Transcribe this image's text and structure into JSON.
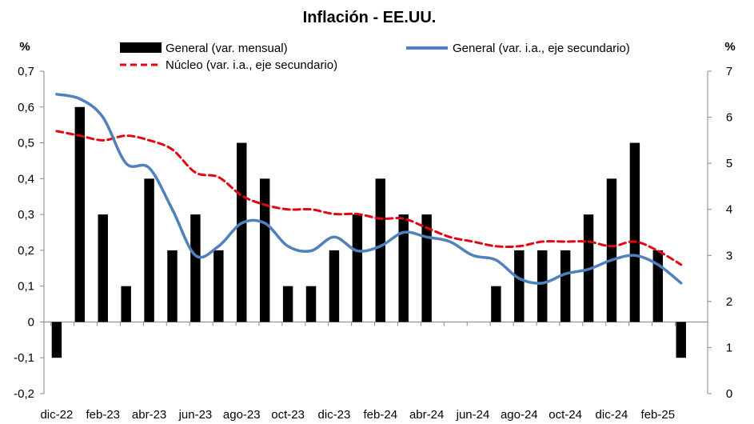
{
  "chart_data": {
    "type": "bar",
    "title": "Inflación - EE.UU.",
    "ylabel_left": "%",
    "ylabel_right": "%",
    "ylim": [
      -0.2,
      0.7
    ],
    "y2lim": [
      0,
      7
    ],
    "yticks": [
      "-0,2",
      "-0,1",
      "0",
      "0,1",
      "0,2",
      "0,3",
      "0,4",
      "0,5",
      "0,6",
      "0,7"
    ],
    "y2ticks": [
      "0",
      "1",
      "2",
      "3",
      "4",
      "5",
      "6",
      "7"
    ],
    "categories": [
      "dic-22",
      "ene-23",
      "feb-23",
      "mar-23",
      "abr-23",
      "may-23",
      "jun-23",
      "jul-23",
      "ago-23",
      "sep-23",
      "oct-23",
      "nov-23",
      "dic-23",
      "ene-24",
      "feb-24",
      "mar-24",
      "abr-24",
      "may-24",
      "jun-24",
      "jul-24",
      "ago-24",
      "sep-24",
      "oct-24",
      "nov-24",
      "dic-24",
      "ene-25",
      "feb-25",
      "mar-25"
    ],
    "tick_labels": [
      "dic-22",
      "feb-23",
      "abr-23",
      "jun-23",
      "ago-23",
      "oct-23",
      "dic-23",
      "feb-24",
      "abr-24",
      "jun-24",
      "ago-24",
      "oct-24",
      "dic-24",
      "feb-25"
    ],
    "series": [
      {
        "name": "General (var. mensual)",
        "axis": "primary",
        "kind": "bar",
        "color": "#000000",
        "values": [
          -0.1,
          0.6,
          0.3,
          0.1,
          0.4,
          0.2,
          0.3,
          0.2,
          0.5,
          0.4,
          0.1,
          0.1,
          0.2,
          0.3,
          0.4,
          0.3,
          0.3,
          0.0,
          0.0,
          0.1,
          0.2,
          0.2,
          0.2,
          0.3,
          0.4,
          0.5,
          0.2,
          -0.1
        ]
      },
      {
        "name": "General (var. i.a., eje secundario)",
        "axis": "secondary",
        "kind": "line",
        "color": "#4F81BD",
        "values": [
          6.5,
          6.4,
          6.0,
          5.0,
          4.9,
          4.0,
          3.0,
          3.2,
          3.7,
          3.7,
          3.2,
          3.1,
          3.4,
          3.1,
          3.2,
          3.5,
          3.4,
          3.3,
          3.0,
          2.9,
          2.5,
          2.4,
          2.6,
          2.7,
          2.9,
          3.0,
          2.8,
          2.4
        ]
      },
      {
        "name": "Núcleo (var. i.a., eje secundario)",
        "axis": "secondary",
        "kind": "line",
        "color": "#E30613",
        "dash": true,
        "values": [
          5.7,
          5.6,
          5.5,
          5.6,
          5.5,
          5.3,
          4.8,
          4.7,
          4.3,
          4.1,
          4.0,
          4.0,
          3.9,
          3.9,
          3.8,
          3.8,
          3.6,
          3.4,
          3.3,
          3.2,
          3.2,
          3.3,
          3.3,
          3.3,
          3.2,
          3.3,
          3.1,
          2.8
        ]
      }
    ],
    "legend": "top"
  }
}
